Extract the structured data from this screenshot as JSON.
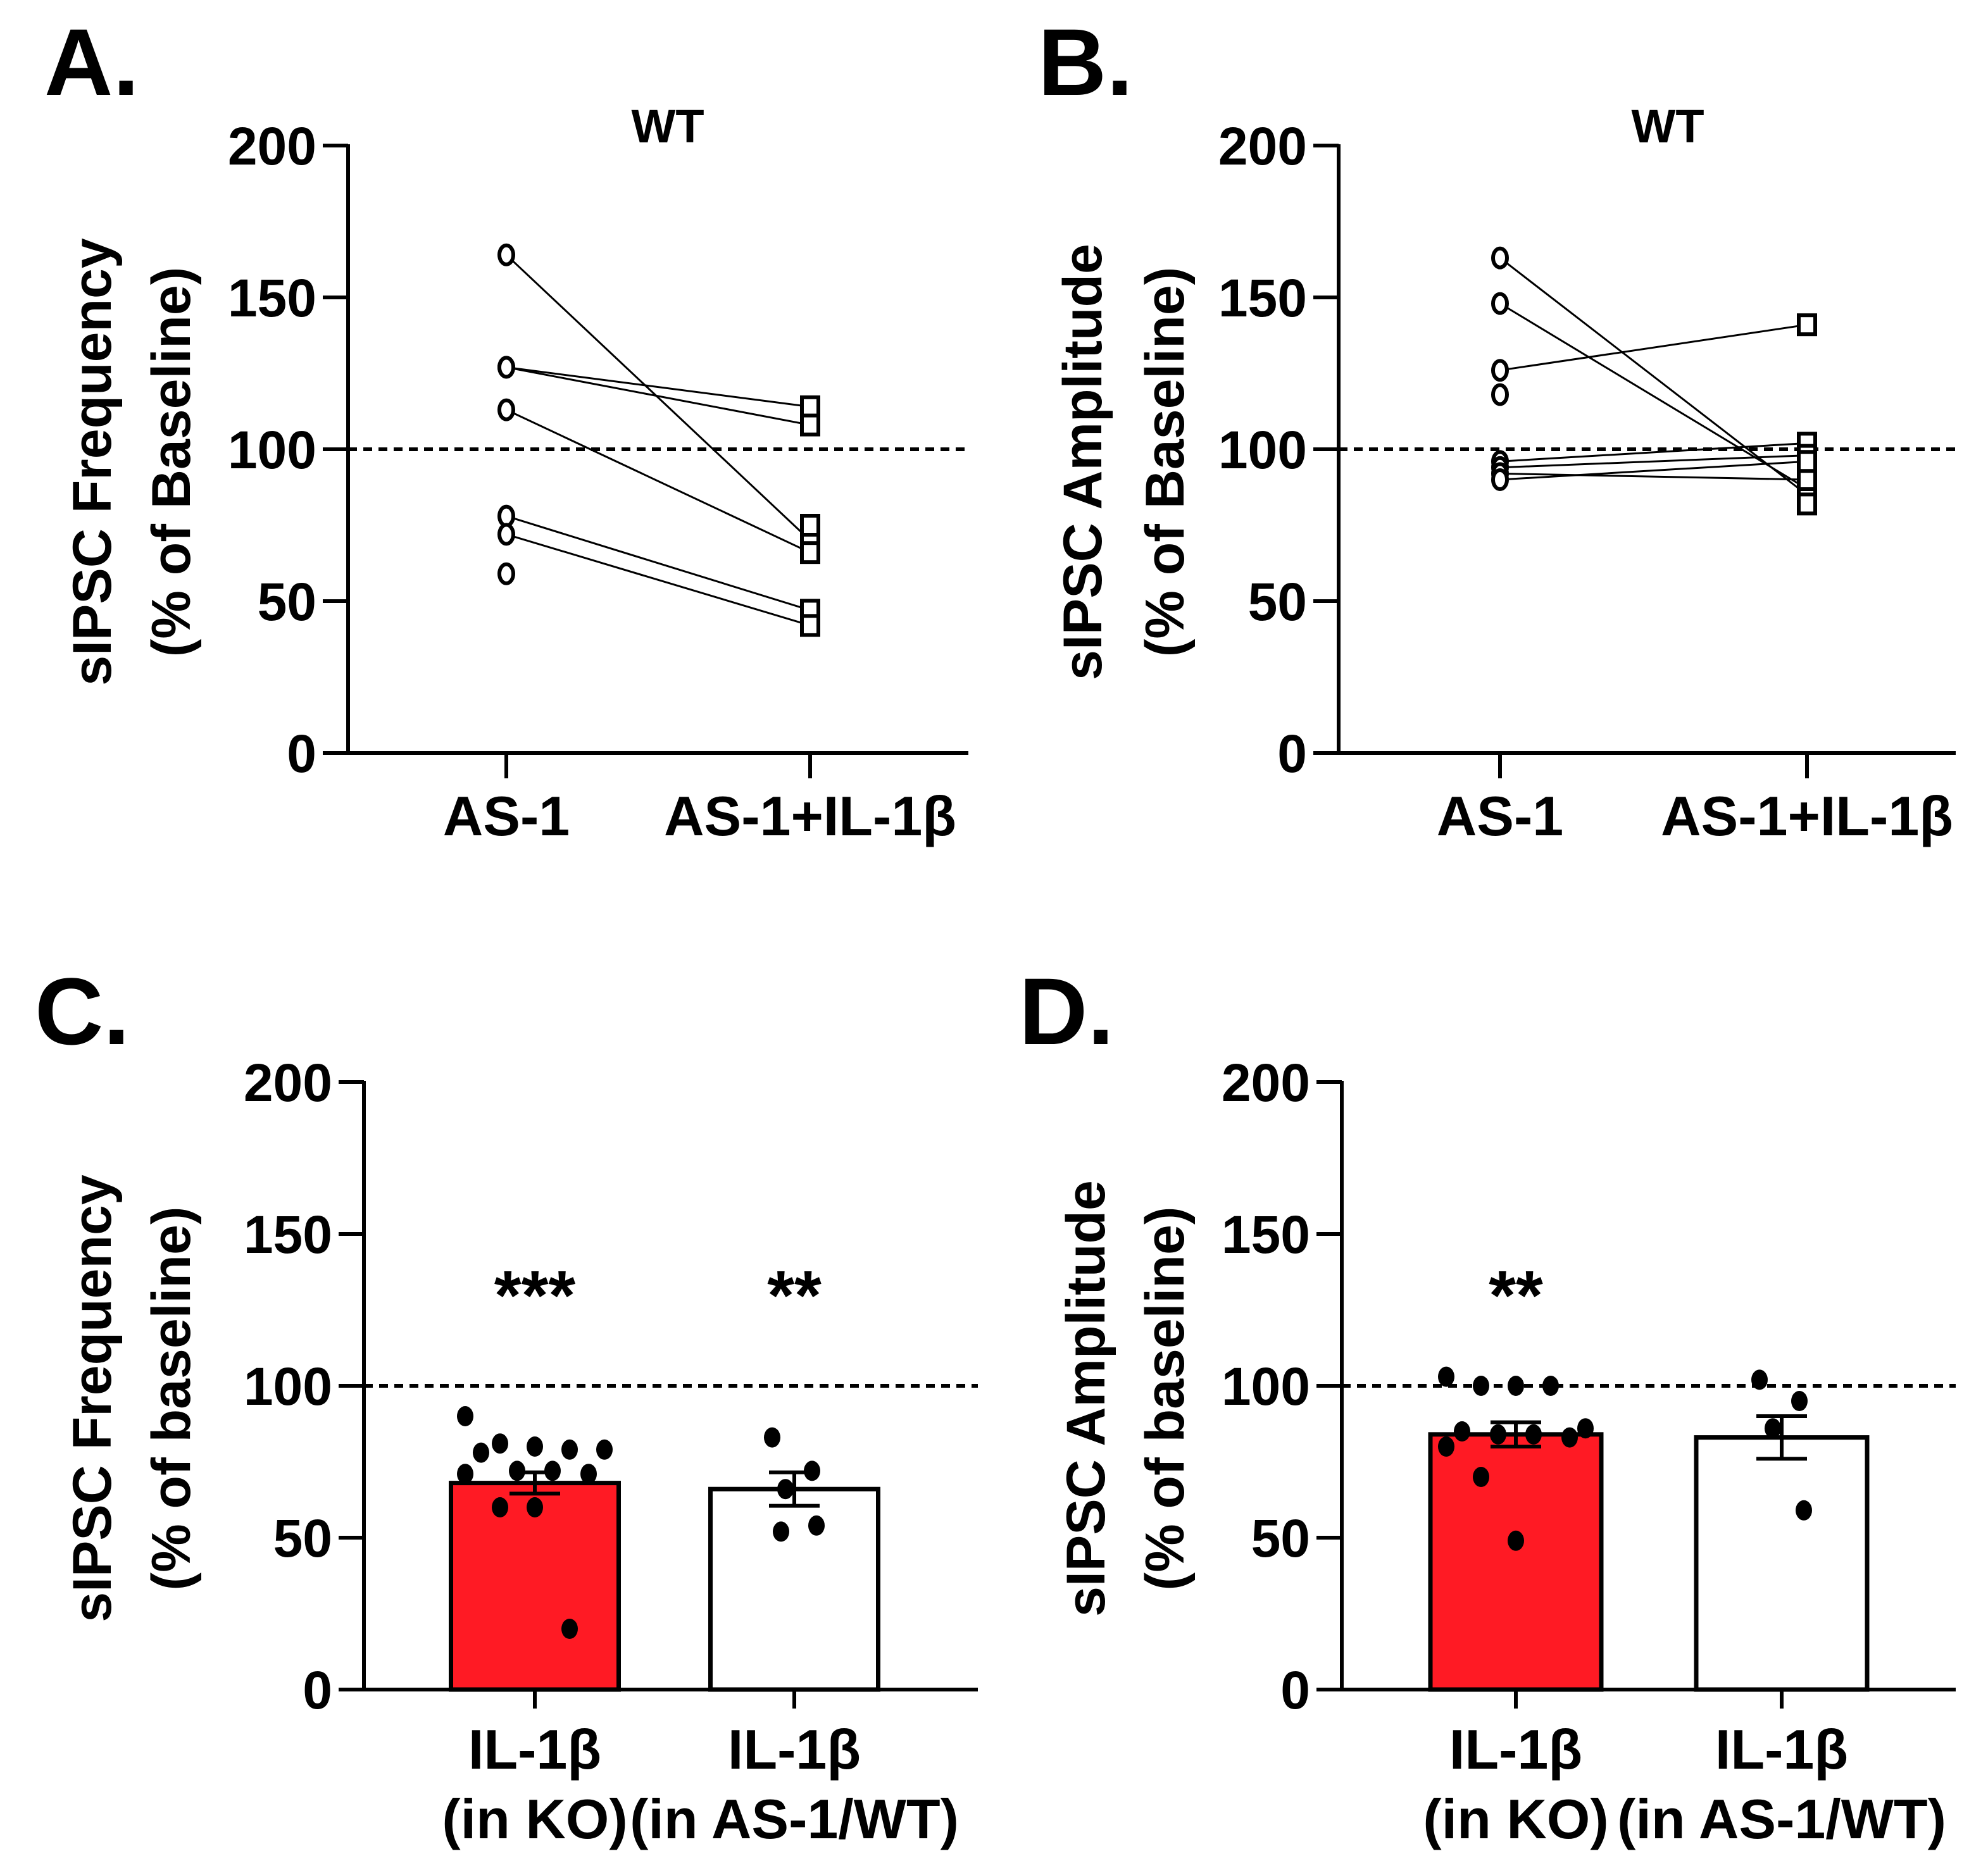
{
  "figure": {
    "panels": [
      "A.",
      "B.",
      "C.",
      "D."
    ]
  },
  "colors": {
    "red_bar": "#ff1a24",
    "white_bar": "#ffffff",
    "ink": "#000000"
  },
  "chart_data": [
    {
      "id": "A",
      "type": "scatter",
      "subtype": "paired",
      "panel_label": "A.",
      "title": "WT",
      "ylabel": [
        "sIPSC Frequency",
        "(% of Baseline)"
      ],
      "categories": [
        "AS-1",
        "AS-1+IL-1β"
      ],
      "ylim": [
        0,
        200
      ],
      "yticks": [
        0,
        50,
        100,
        150,
        200
      ],
      "reference_line": 100,
      "markers": [
        "circle",
        "square"
      ],
      "pairs": [
        [
          164,
          70
        ],
        [
          127,
          114
        ],
        [
          127,
          108
        ],
        [
          113,
          66
        ],
        [
          78,
          47
        ],
        [
          72,
          42
        ]
      ],
      "unpaired": [
        [
          59,
          null
        ],
        [
          null,
          75
        ]
      ]
    },
    {
      "id": "B",
      "type": "scatter",
      "subtype": "paired",
      "panel_label": "B.",
      "title": "WT",
      "ylabel": [
        "sIPSC Amplitude",
        "(% of Baseline)"
      ],
      "categories": [
        "AS-1",
        "AS-1+IL-1β"
      ],
      "ylim": [
        0,
        200
      ],
      "yticks": [
        0,
        50,
        100,
        150,
        200
      ],
      "reference_line": 100,
      "markers": [
        "circle",
        "square"
      ],
      "pairs": [
        [
          163,
          85
        ],
        [
          148,
          87
        ],
        [
          126,
          141
        ],
        [
          96,
          102
        ],
        [
          94,
          98
        ],
        [
          92,
          90
        ],
        [
          90,
          96
        ]
      ],
      "unpaired": [
        [
          118,
          null
        ],
        [
          null,
          82
        ]
      ]
    },
    {
      "id": "C",
      "type": "bar",
      "panel_label": "C.",
      "ylabel": [
        "sIPSC Frequency",
        "(% of baseline)"
      ],
      "categories": [
        [
          "IL-1β",
          "(in KO)"
        ],
        [
          "IL-1β",
          "(in AS-1/WT)"
        ]
      ],
      "values": [
        68,
        66
      ],
      "sem": [
        3.5,
        5.5
      ],
      "bar_colors": [
        "#ff1a24",
        "#ffffff"
      ],
      "significance": [
        "***",
        "**"
      ],
      "ylim": [
        0,
        200
      ],
      "yticks": [
        0,
        50,
        100,
        150,
        200
      ],
      "reference_line": 100,
      "points": [
        [
          90,
          81,
          80,
          79,
          79,
          78,
          72,
          72,
          71,
          71,
          60,
          60,
          20
        ],
        [
          83,
          72,
          66,
          54,
          52
        ]
      ]
    },
    {
      "id": "D",
      "type": "bar",
      "panel_label": "D.",
      "ylabel": [
        "sIPSC Amplitude",
        "(% of baseline)"
      ],
      "categories": [
        [
          "IL-1β",
          "(in KO)"
        ],
        [
          "IL-1β",
          "(in AS-1/WT)"
        ]
      ],
      "values": [
        84,
        83
      ],
      "sem": [
        4,
        7
      ],
      "bar_colors": [
        "#ff1a24",
        "#ffffff"
      ],
      "significance": [
        "**",
        ""
      ],
      "ylim": [
        0,
        200
      ],
      "yticks": [
        0,
        50,
        100,
        150,
        200
      ],
      "reference_line": 100,
      "points": [
        [
          103,
          100,
          100,
          100,
          86,
          85,
          84,
          84,
          83,
          80,
          70,
          49
        ],
        [
          102,
          95,
          86,
          59
        ]
      ]
    }
  ]
}
